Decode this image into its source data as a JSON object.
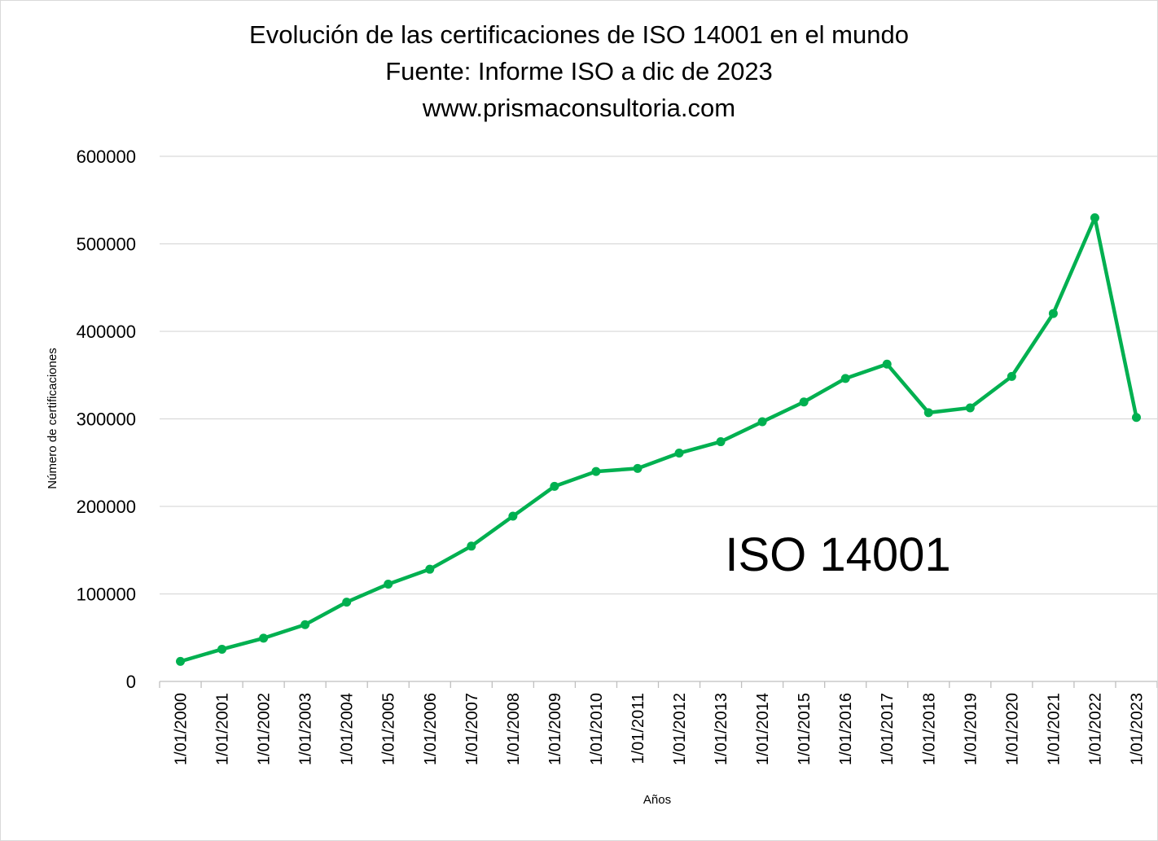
{
  "chart_data": {
    "type": "line",
    "title": "Evolución de las certificaciones de ISO 14001 en el mundo",
    "subtitle_lines": [
      "Fuente: Informe ISO a dic de 2023",
      "www.prismaconsultoria.com"
    ],
    "xlabel": "Años",
    "ylabel": "Número de certificaciones",
    "annotation": "ISO 14001",
    "ylim": [
      0,
      600000
    ],
    "yticks": [
      "0",
      "100000",
      "200000",
      "300000",
      "400000",
      "500000",
      "600000"
    ],
    "ytick_values": [
      0,
      100000,
      200000,
      300000,
      400000,
      500000,
      600000
    ],
    "grid": true,
    "legend": "none",
    "color": "#00b050",
    "categories": [
      "1/01/2000",
      "1/01/2001",
      "1/01/2002",
      "1/01/2003",
      "1/01/2004",
      "1/01/2005",
      "1/01/2006",
      "1/01/2007",
      "1/01/2008",
      "1/01/2009",
      "1/01/2010",
      "1/01/2011",
      "1/01/2012",
      "1/01/2013",
      "1/01/2014",
      "1/01/2015",
      "1/01/2016",
      "1/01/2017",
      "1/01/2018",
      "1/01/2019",
      "1/01/2020",
      "1/01/2021",
      "1/01/2022",
      "1/01/2023"
    ],
    "values": [
      22900,
      36800,
      49400,
      64900,
      90600,
      111200,
      128200,
      154600,
      188800,
      222900,
      239900,
      243400,
      260900,
      273900,
      296700,
      319300,
      346200,
      362600,
      307100,
      312600,
      348500,
      420400,
      529800,
      301600
    ]
  }
}
